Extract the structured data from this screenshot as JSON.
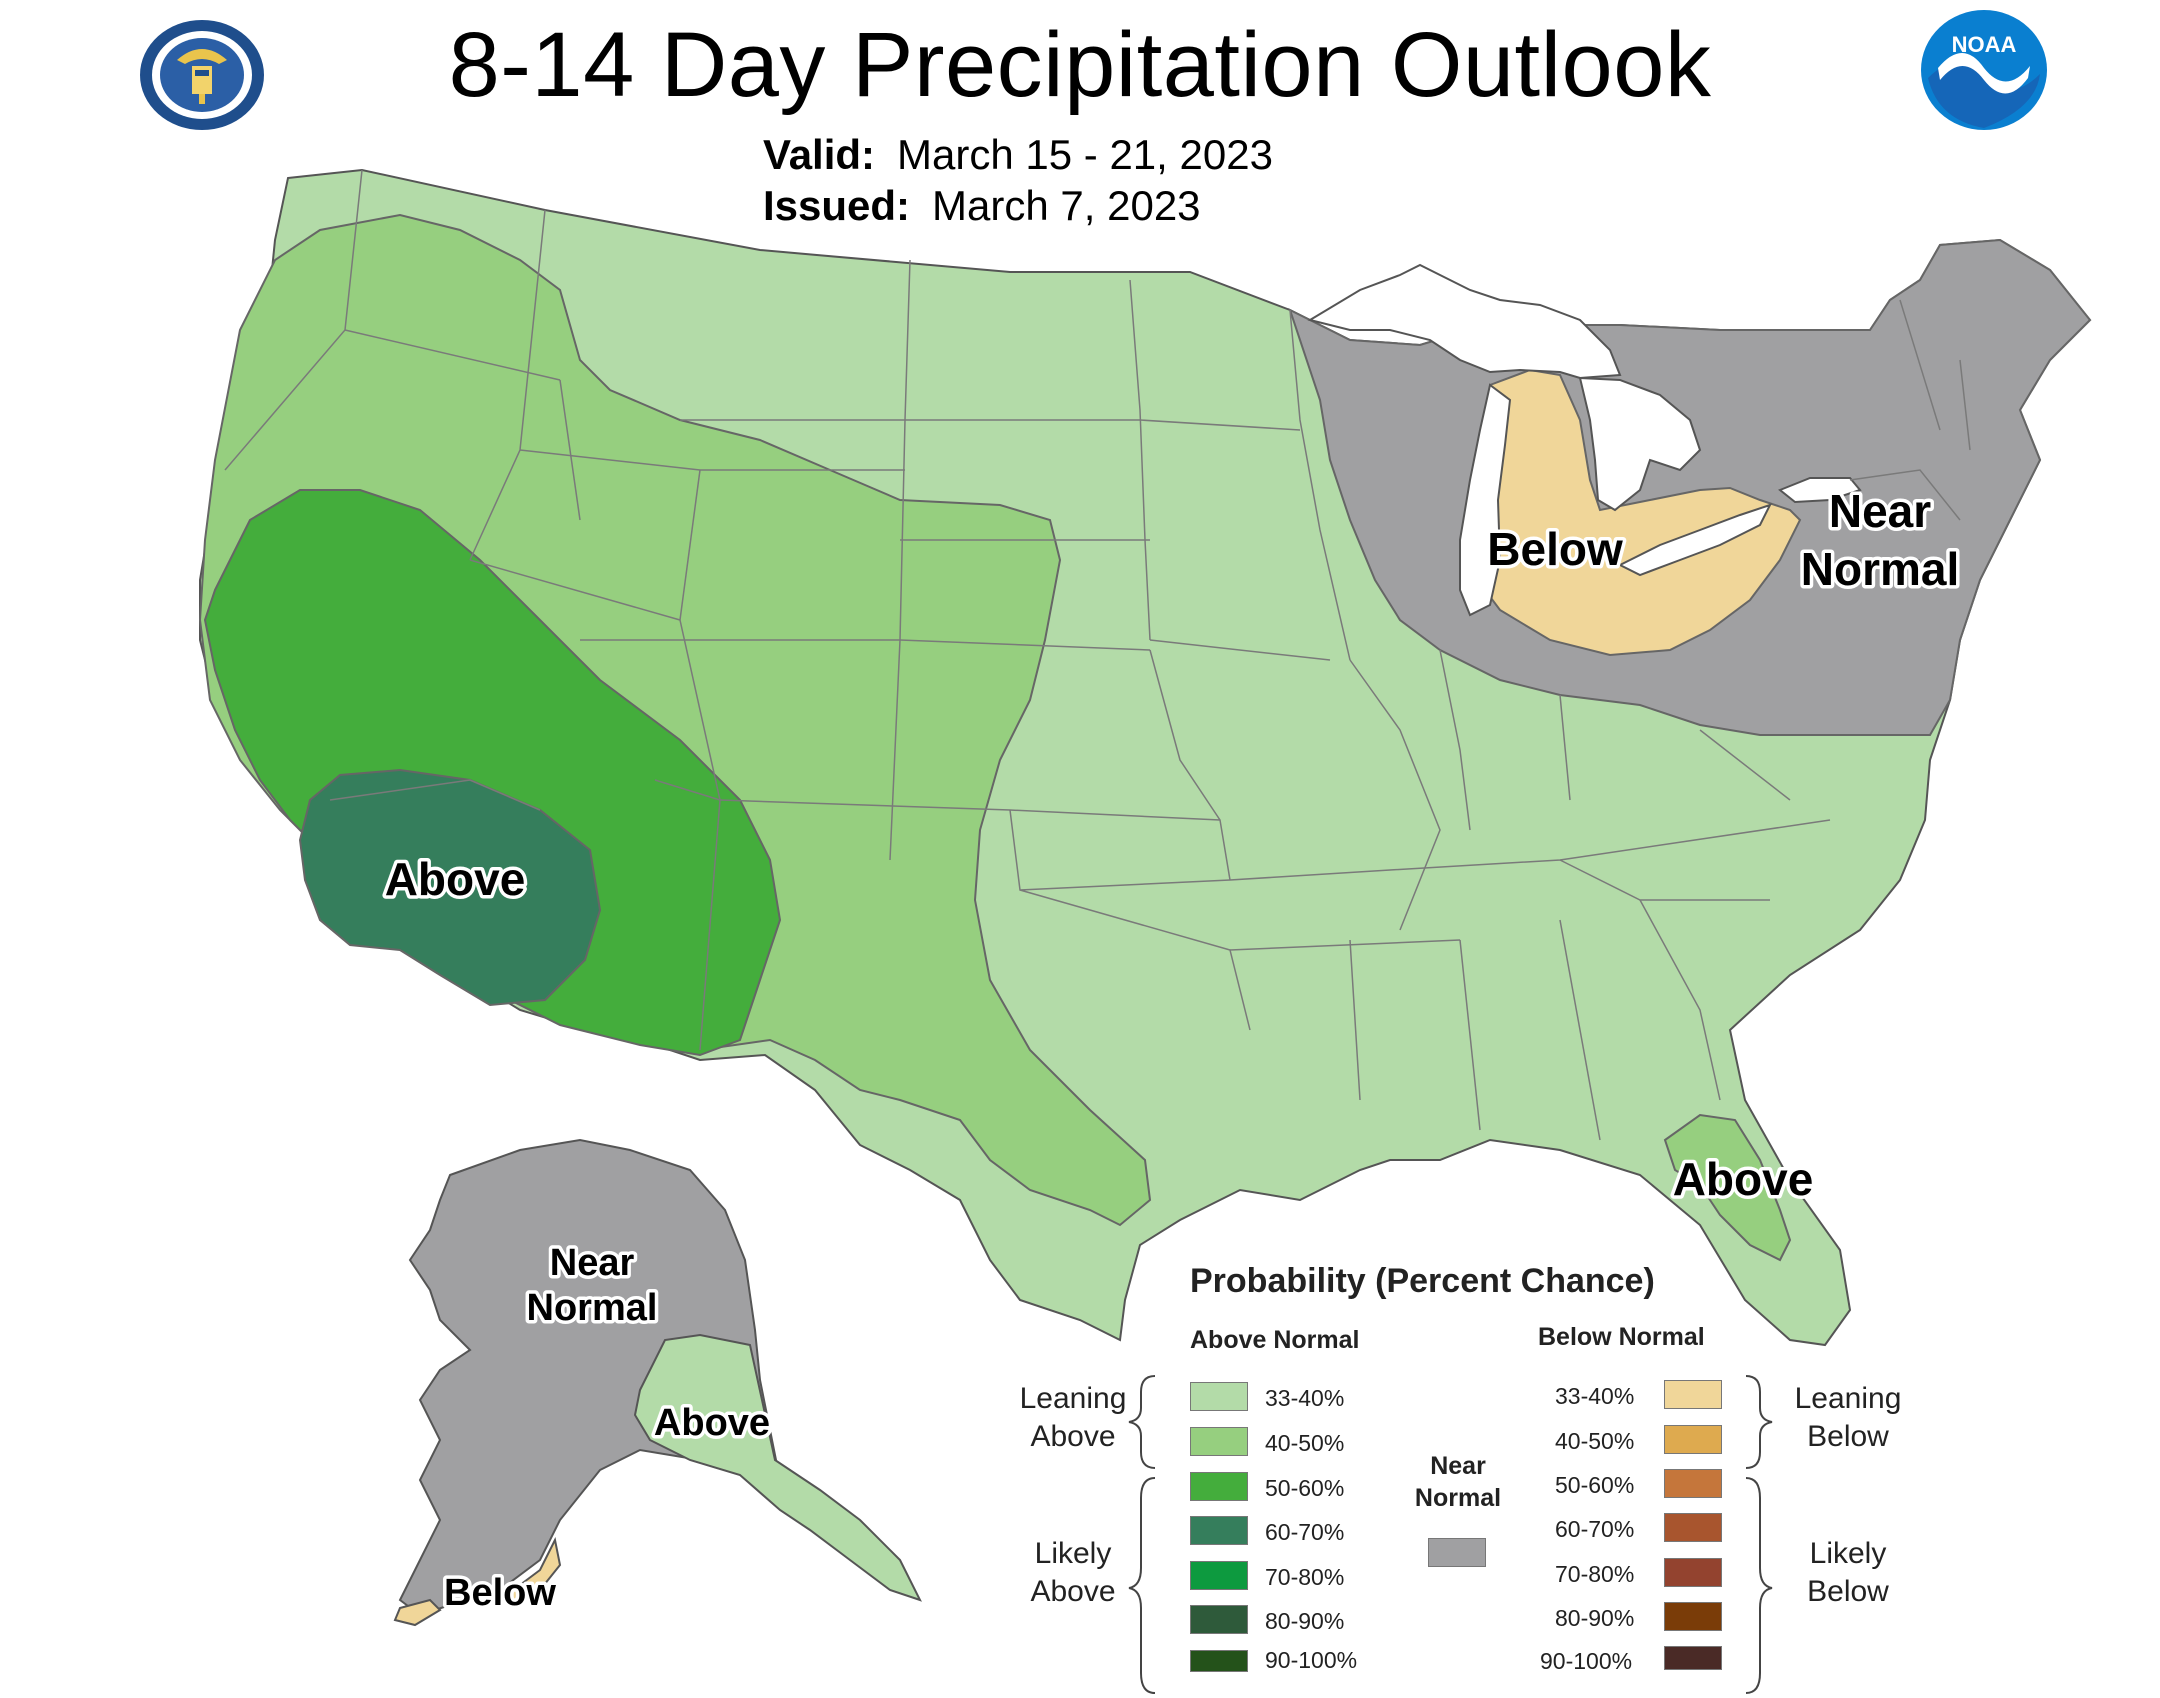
{
  "header": {
    "title": "8-14 Day Precipitation Outlook",
    "valid_label": "Valid:",
    "valid_value": "March 15 - 21, 2023",
    "issued_label": "Issued:",
    "issued_value": "March 7, 2023"
  },
  "logos": {
    "left": "department-of-commerce-seal",
    "right": "noaa-logo",
    "noaa_text": "NOAA"
  },
  "map_labels": {
    "west_above": "Above",
    "great_lakes_below": "Below",
    "northeast_near": "Near",
    "northeast_normal": "Normal",
    "florida_above": "Above",
    "alaska_near": "Near",
    "alaska_normal": "Normal",
    "alaska_above": "Above",
    "alaska_below": "Below"
  },
  "categories": {
    "above_33_40": "#b3dba8",
    "above_40_50": "#96cf7f",
    "above_50_60": "#44ad3c",
    "above_60_70": "#357e5c",
    "above_70_80": "#0d9a3f",
    "above_80_90": "#2e5a3a",
    "above_90_100": "#24521a",
    "below_33_40": "#f0d699",
    "below_40_50": "#deaa4f",
    "below_50_60": "#c5763b",
    "below_60_70": "#a8552e",
    "below_70_80": "#93432f",
    "below_80_90": "#7a3c08",
    "below_90_100": "#4a2a26",
    "near_normal": "#a0a0a2",
    "outline": "#6e6e6e",
    "lakes": "#ffffff"
  },
  "legend": {
    "title": "Probability (Percent Chance)",
    "above_header": "Above Normal",
    "below_header": "Below Normal",
    "near_normal_line1": "Near",
    "near_normal_line2": "Normal",
    "leaning_above_line1": "Leaning",
    "leaning_above_line2": "Above",
    "likely_above_line1": "Likely",
    "likely_above_line2": "Above",
    "leaning_below_line1": "Leaning",
    "leaning_below_line2": "Below",
    "likely_below_line1": "Likely",
    "likely_below_line2": "Below",
    "ranges": [
      "33-40%",
      "40-50%",
      "50-60%",
      "60-70%",
      "70-80%",
      "80-90%",
      "90-100%"
    ]
  }
}
